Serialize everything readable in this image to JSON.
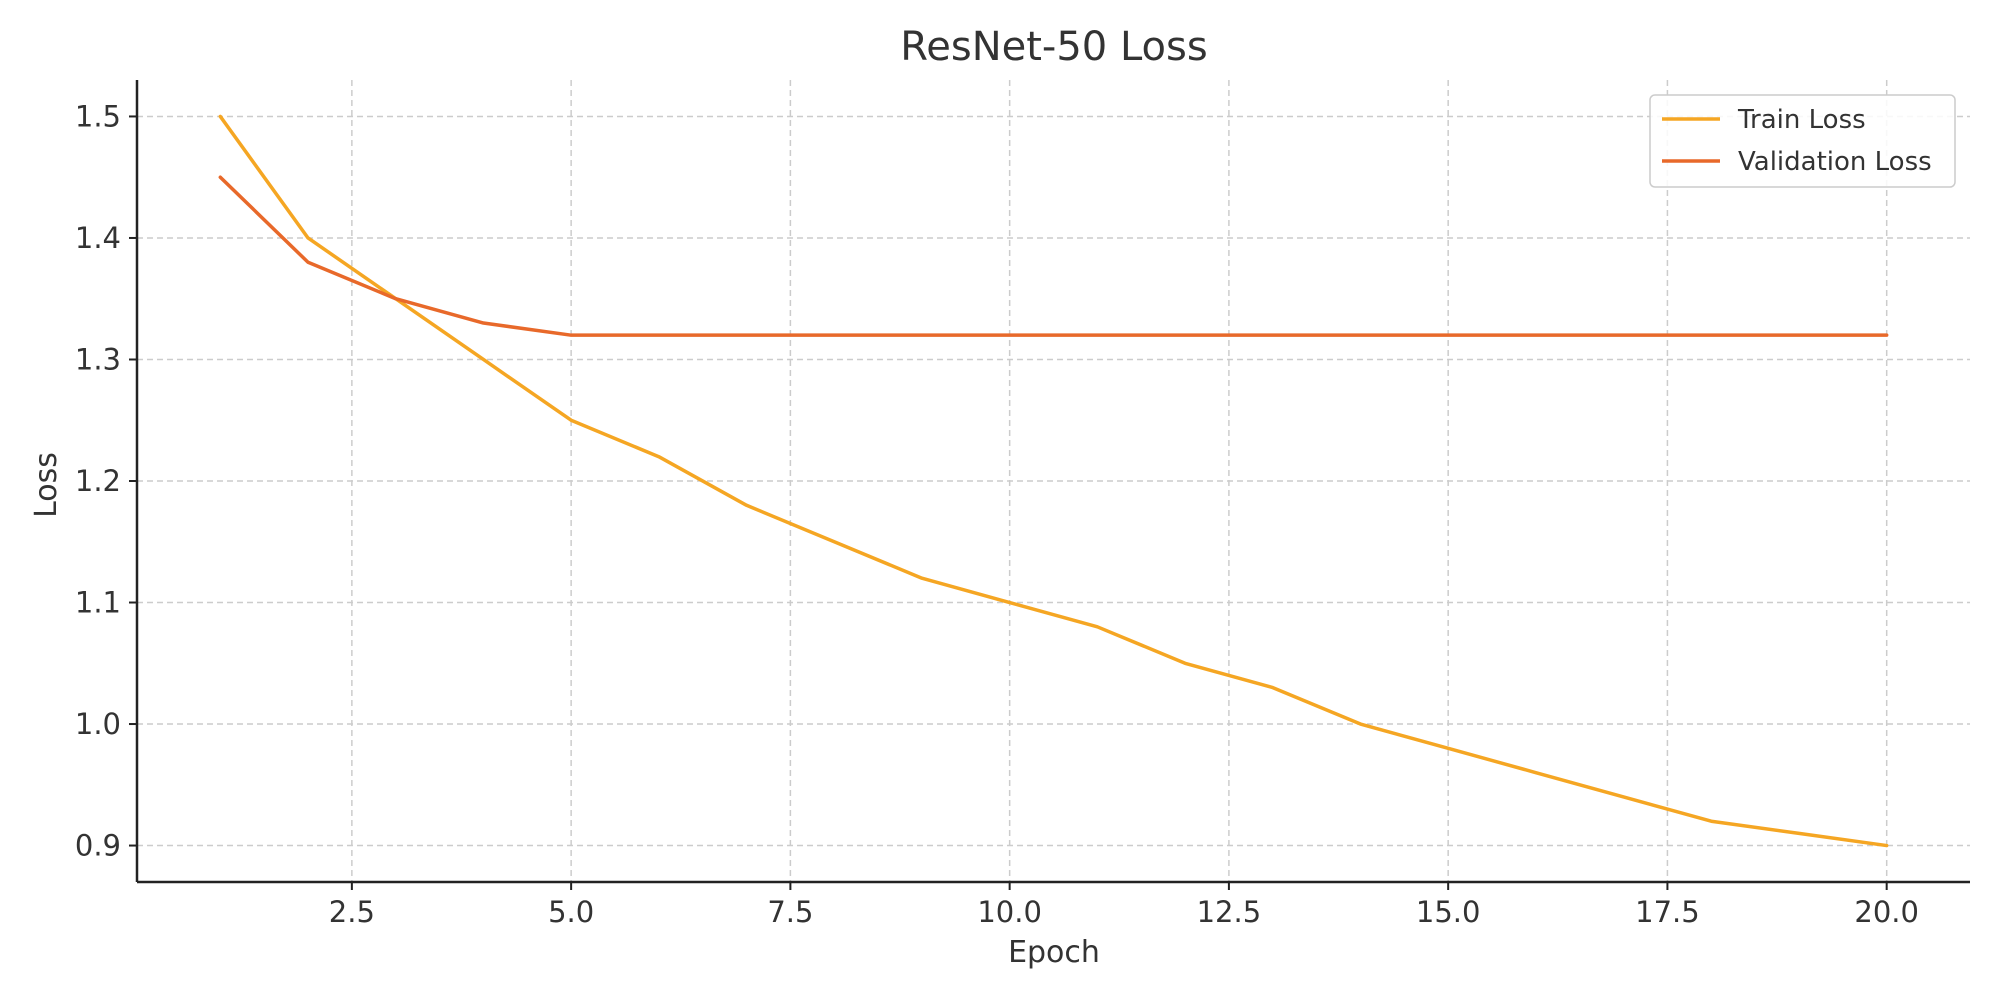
{
  "chart_data": {
    "type": "line",
    "title": "ResNet-50 Loss",
    "xlabel": "Epoch",
    "ylabel": "Loss",
    "xlim": [
      0.05,
      20.95
    ],
    "ylim": [
      0.87,
      1.53
    ],
    "xticks": [
      2.5,
      5.0,
      7.5,
      10.0,
      12.5,
      15.0,
      17.5,
      20.0
    ],
    "xtick_labels": [
      "2.5",
      "5.0",
      "7.5",
      "10.0",
      "12.5",
      "15.0",
      "17.5",
      "20.0"
    ],
    "yticks": [
      0.9,
      1.0,
      1.1,
      1.2,
      1.3,
      1.4,
      1.5
    ],
    "ytick_labels": [
      "0.9",
      "1.0",
      "1.1",
      "1.2",
      "1.3",
      "1.4",
      "1.5"
    ],
    "grid": true,
    "legend_position": "top-right",
    "x": [
      1,
      2,
      3,
      4,
      5,
      6,
      7,
      8,
      9,
      10,
      11,
      12,
      13,
      14,
      15,
      16,
      17,
      18,
      19,
      20
    ],
    "series": [
      {
        "name": "Train Loss",
        "color": "#f5a623",
        "values": [
          1.5,
          1.4,
          1.35,
          1.3,
          1.25,
          1.22,
          1.18,
          1.15,
          1.12,
          1.1,
          1.08,
          1.05,
          1.03,
          1.0,
          0.98,
          0.96,
          0.94,
          0.92,
          0.91,
          0.9
        ]
      },
      {
        "name": "Validation Loss",
        "color": "#e8692a",
        "values": [
          1.45,
          1.38,
          1.35,
          1.33,
          1.32,
          1.32,
          1.32,
          1.32,
          1.32,
          1.32,
          1.32,
          1.32,
          1.32,
          1.32,
          1.32,
          1.32,
          1.32,
          1.32,
          1.32,
          1.32
        ]
      }
    ]
  }
}
